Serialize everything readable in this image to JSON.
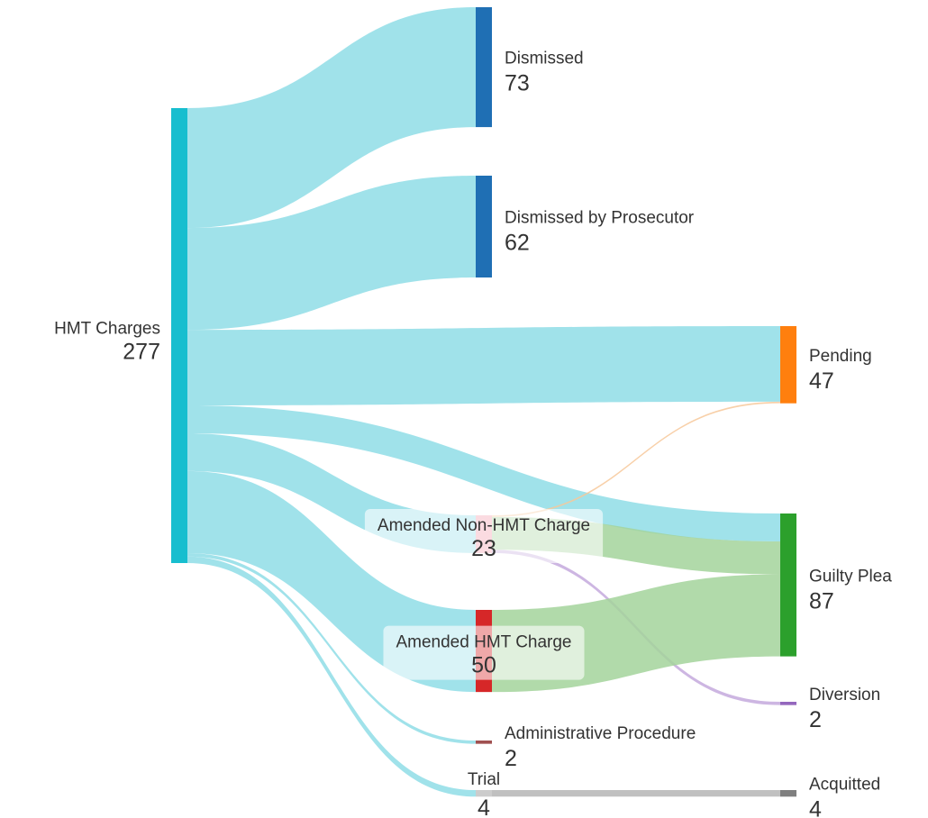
{
  "chart_data": {
    "type": "sankey",
    "nodes": [
      {
        "name": "HMT Charges",
        "value": 277,
        "color": "#17becf"
      },
      {
        "name": "Dismissed",
        "value": 73,
        "color": "#1f6fb4"
      },
      {
        "name": "Dismissed by Prosecutor",
        "value": 62,
        "color": "#1f6fb4"
      },
      {
        "name": "Pending",
        "value": 47,
        "color": "#ff7f0e"
      },
      {
        "name": "Guilty Plea",
        "value": 87,
        "color": "#2ca02c"
      },
      {
        "name": "Amended Non-HMT Charge",
        "value": 23,
        "color": "#f4a6b4"
      },
      {
        "name": "Amended HMT Charge",
        "value": 50,
        "color": "#d62728"
      },
      {
        "name": "Administrative Procedure",
        "value": 2,
        "color": "#a05050"
      },
      {
        "name": "Trial",
        "value": 4,
        "color": "#cccccc"
      },
      {
        "name": "Diversion",
        "value": 2,
        "color": "#9467bd"
      },
      {
        "name": "Acquitted",
        "value": 4,
        "color": "#7f7f7f"
      }
    ],
    "links": [
      {
        "source": 0,
        "target": 1,
        "value": 73,
        "color": "#8fdde6"
      },
      {
        "source": 0,
        "target": 2,
        "value": 62,
        "color": "#8fdde6"
      },
      {
        "source": 0,
        "target": 3,
        "value": 46,
        "color": "#8fdde6"
      },
      {
        "source": 0,
        "target": 4,
        "value": 17,
        "color": "#8fdde6"
      },
      {
        "source": 0,
        "target": 5,
        "value": 23,
        "color": "#8fdde6"
      },
      {
        "source": 0,
        "target": 6,
        "value": 50,
        "color": "#8fdde6"
      },
      {
        "source": 0,
        "target": 7,
        "value": 2,
        "color": "#8fdde6"
      },
      {
        "source": 0,
        "target": 8,
        "value": 4,
        "color": "#8fdde6"
      },
      {
        "source": 5,
        "target": 3,
        "value": 1,
        "color": "#f7c89a"
      },
      {
        "source": 5,
        "target": 4,
        "value": 20,
        "color": "#a3d39b"
      },
      {
        "source": 5,
        "target": 9,
        "value": 2,
        "color": "#c4a9dd"
      },
      {
        "source": 6,
        "target": 4,
        "value": 50,
        "color": "#a3d39b"
      },
      {
        "source": 8,
        "target": 10,
        "value": 4,
        "color": "#b5b5b5"
      }
    ]
  }
}
